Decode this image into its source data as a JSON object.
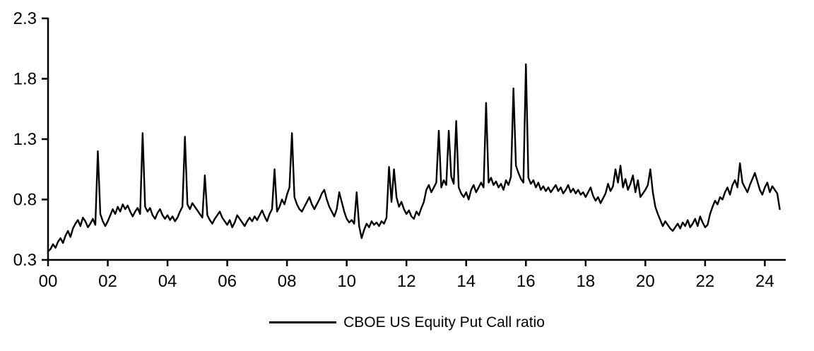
{
  "chart_data": {
    "type": "line",
    "title": "CBOE US Equity Put Call ratio",
    "xlabel": "",
    "ylabel": "",
    "xlim": [
      0,
      24.7
    ],
    "ylim": [
      0.3,
      2.3
    ],
    "grid": false,
    "legend_position": "bottom",
    "line_color": "#000000",
    "axis_color": "#000000",
    "y_ticks": [
      0.3,
      0.8,
      1.3,
      1.8,
      2.3
    ],
    "x_ticks": [
      {
        "value": 0,
        "label": "00"
      },
      {
        "value": 2,
        "label": "02"
      },
      {
        "value": 4,
        "label": "04"
      },
      {
        "value": 6,
        "label": "06"
      },
      {
        "value": 8,
        "label": "08"
      },
      {
        "value": 10,
        "label": "10"
      },
      {
        "value": 12,
        "label": "12"
      },
      {
        "value": 14,
        "label": "14"
      },
      {
        "value": 16,
        "label": "16"
      },
      {
        "value": 18,
        "label": "18"
      },
      {
        "value": 20,
        "label": "20"
      },
      {
        "value": 22,
        "label": "22"
      },
      {
        "value": 24,
        "label": "24"
      }
    ],
    "series": [
      {
        "name": "CBOE US Equity Put Call ratio",
        "start_year": 2000,
        "points_per_year": 12,
        "values": [
          0.37,
          0.39,
          0.43,
          0.4,
          0.45,
          0.48,
          0.44,
          0.5,
          0.54,
          0.49,
          0.56,
          0.6,
          0.63,
          0.58,
          0.65,
          0.62,
          0.57,
          0.6,
          0.64,
          0.59,
          1.2,
          0.68,
          0.62,
          0.58,
          0.62,
          0.67,
          0.72,
          0.68,
          0.74,
          0.7,
          0.76,
          0.72,
          0.75,
          0.7,
          0.66,
          0.7,
          0.73,
          0.68,
          1.35,
          0.74,
          0.7,
          0.73,
          0.67,
          0.64,
          0.69,
          0.72,
          0.67,
          0.64,
          0.67,
          0.63,
          0.66,
          0.62,
          0.65,
          0.7,
          0.74,
          1.32,
          0.76,
          0.72,
          0.77,
          0.74,
          0.71,
          0.68,
          0.65,
          1.0,
          0.67,
          0.63,
          0.6,
          0.64,
          0.67,
          0.7,
          0.65,
          0.62,
          0.59,
          0.63,
          0.57,
          0.61,
          0.67,
          0.64,
          0.61,
          0.58,
          0.62,
          0.65,
          0.62,
          0.66,
          0.63,
          0.67,
          0.71,
          0.66,
          0.62,
          0.68,
          0.72,
          1.05,
          0.7,
          0.74,
          0.8,
          0.76,
          0.84,
          0.9,
          1.35,
          0.82,
          0.76,
          0.72,
          0.7,
          0.74,
          0.78,
          0.82,
          0.76,
          0.72,
          0.76,
          0.8,
          0.85,
          0.88,
          0.8,
          0.74,
          0.7,
          0.66,
          0.72,
          0.86,
          0.78,
          0.7,
          0.64,
          0.61,
          0.63,
          0.6,
          0.86,
          0.58,
          0.48,
          0.55,
          0.6,
          0.57,
          0.62,
          0.59,
          0.61,
          0.58,
          0.62,
          0.6,
          0.65,
          1.07,
          0.78,
          1.05,
          0.82,
          0.74,
          0.78,
          0.72,
          0.68,
          0.71,
          0.66,
          0.64,
          0.7,
          0.67,
          0.73,
          0.78,
          0.88,
          0.92,
          0.86,
          0.9,
          0.94,
          1.37,
          0.9,
          0.96,
          0.92,
          1.37,
          0.99,
          0.93,
          1.45,
          0.9,
          0.85,
          0.82,
          0.86,
          0.8,
          0.88,
          0.92,
          0.86,
          0.9,
          0.94,
          0.9,
          1.6,
          0.94,
          0.98,
          0.92,
          0.95,
          0.9,
          0.93,
          0.88,
          0.96,
          0.92,
          0.99,
          1.72,
          1.08,
          1.02,
          0.97,
          0.94,
          1.92,
          0.98,
          0.93,
          0.96,
          0.9,
          0.94,
          0.88,
          0.91,
          0.87,
          0.9,
          0.86,
          0.89,
          0.92,
          0.87,
          0.9,
          0.85,
          0.88,
          0.92,
          0.86,
          0.89,
          0.85,
          0.88,
          0.84,
          0.86,
          0.82,
          0.86,
          0.9,
          0.83,
          0.79,
          0.82,
          0.77,
          0.81,
          0.85,
          0.93,
          0.87,
          0.91,
          1.05,
          0.94,
          1.08,
          0.9,
          0.97,
          0.88,
          0.93,
          1.0,
          0.86,
          0.96,
          0.82,
          0.85,
          0.88,
          0.92,
          1.05,
          0.86,
          0.74,
          0.68,
          0.63,
          0.58,
          0.62,
          0.59,
          0.56,
          0.54,
          0.57,
          0.6,
          0.56,
          0.61,
          0.58,
          0.63,
          0.57,
          0.6,
          0.64,
          0.58,
          0.66,
          0.61,
          0.57,
          0.59,
          0.68,
          0.74,
          0.79,
          0.76,
          0.82,
          0.8,
          0.86,
          0.9,
          0.84,
          0.92,
          0.96,
          0.9,
          1.1,
          0.94,
          0.9,
          0.86,
          0.92,
          0.97,
          1.02,
          0.95,
          0.88,
          0.84,
          0.9,
          0.94,
          0.86,
          0.91,
          0.88,
          0.85,
          0.72
        ]
      }
    ]
  },
  "legend": {
    "label": "CBOE US Equity Put Call ratio"
  }
}
